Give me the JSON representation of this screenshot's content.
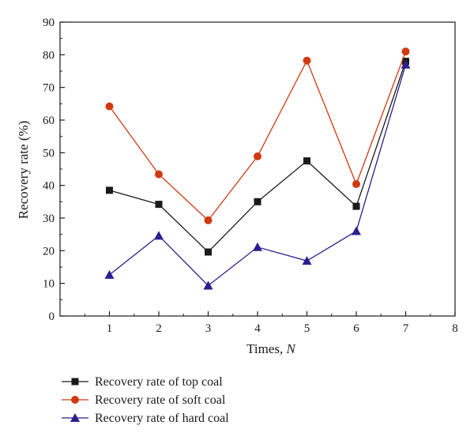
{
  "chart_data": {
    "type": "line",
    "xlabel_prefix": "Times, ",
    "xlabel_var": "N",
    "ylabel": "Recovery rate (%)",
    "xlim": [
      0,
      8
    ],
    "ylim": [
      0,
      90
    ],
    "x_ticks": [
      "1",
      "2",
      "3",
      "4",
      "5",
      "6",
      "7",
      "8"
    ],
    "y_ticks": [
      "0",
      "10",
      "20",
      "30",
      "40",
      "50",
      "60",
      "70",
      "80",
      "90"
    ],
    "x": [
      1,
      2,
      3,
      4,
      5,
      6,
      7
    ],
    "grid": false,
    "legend_position": "bottom",
    "series": [
      {
        "name": "Recovery rate of top coal",
        "marker": "square",
        "color": "#1a1a1a",
        "values": [
          38.5,
          34.2,
          19.6,
          35.0,
          47.5,
          33.6,
          78.0
        ]
      },
      {
        "name": "Recovery rate of soft coal",
        "marker": "circle",
        "color": "#d03a12",
        "values": [
          64.2,
          43.4,
          29.3,
          48.9,
          78.2,
          40.4,
          81.0
        ]
      },
      {
        "name": "Recovery rate of hard coal",
        "marker": "triangle",
        "color": "#2a1f8c",
        "values": [
          12.6,
          24.6,
          9.3,
          21.1,
          16.9,
          26.0,
          77.0
        ]
      }
    ]
  }
}
